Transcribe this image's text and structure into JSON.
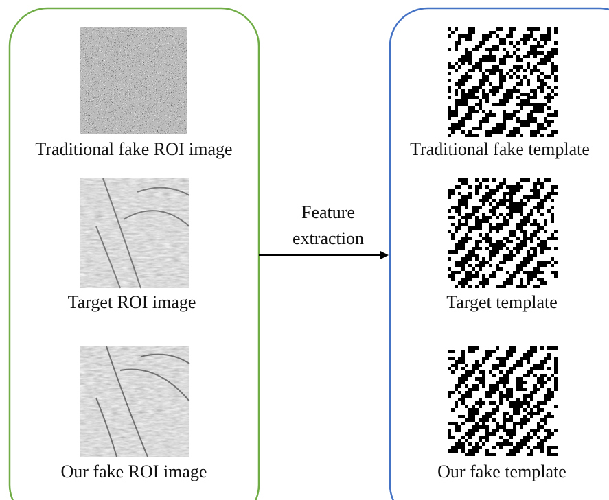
{
  "left": {
    "items": [
      {
        "label": "Traditional fake ROI image"
      },
      {
        "label": "Target ROI image"
      },
      {
        "label": "Our fake ROI image"
      }
    ]
  },
  "arrow": {
    "label_lines": [
      "Feature",
      "extraction"
    ]
  },
  "right": {
    "items": [
      {
        "label": "Traditional fake template"
      },
      {
        "label": "Target template"
      },
      {
        "label": "Our fake template"
      }
    ]
  }
}
